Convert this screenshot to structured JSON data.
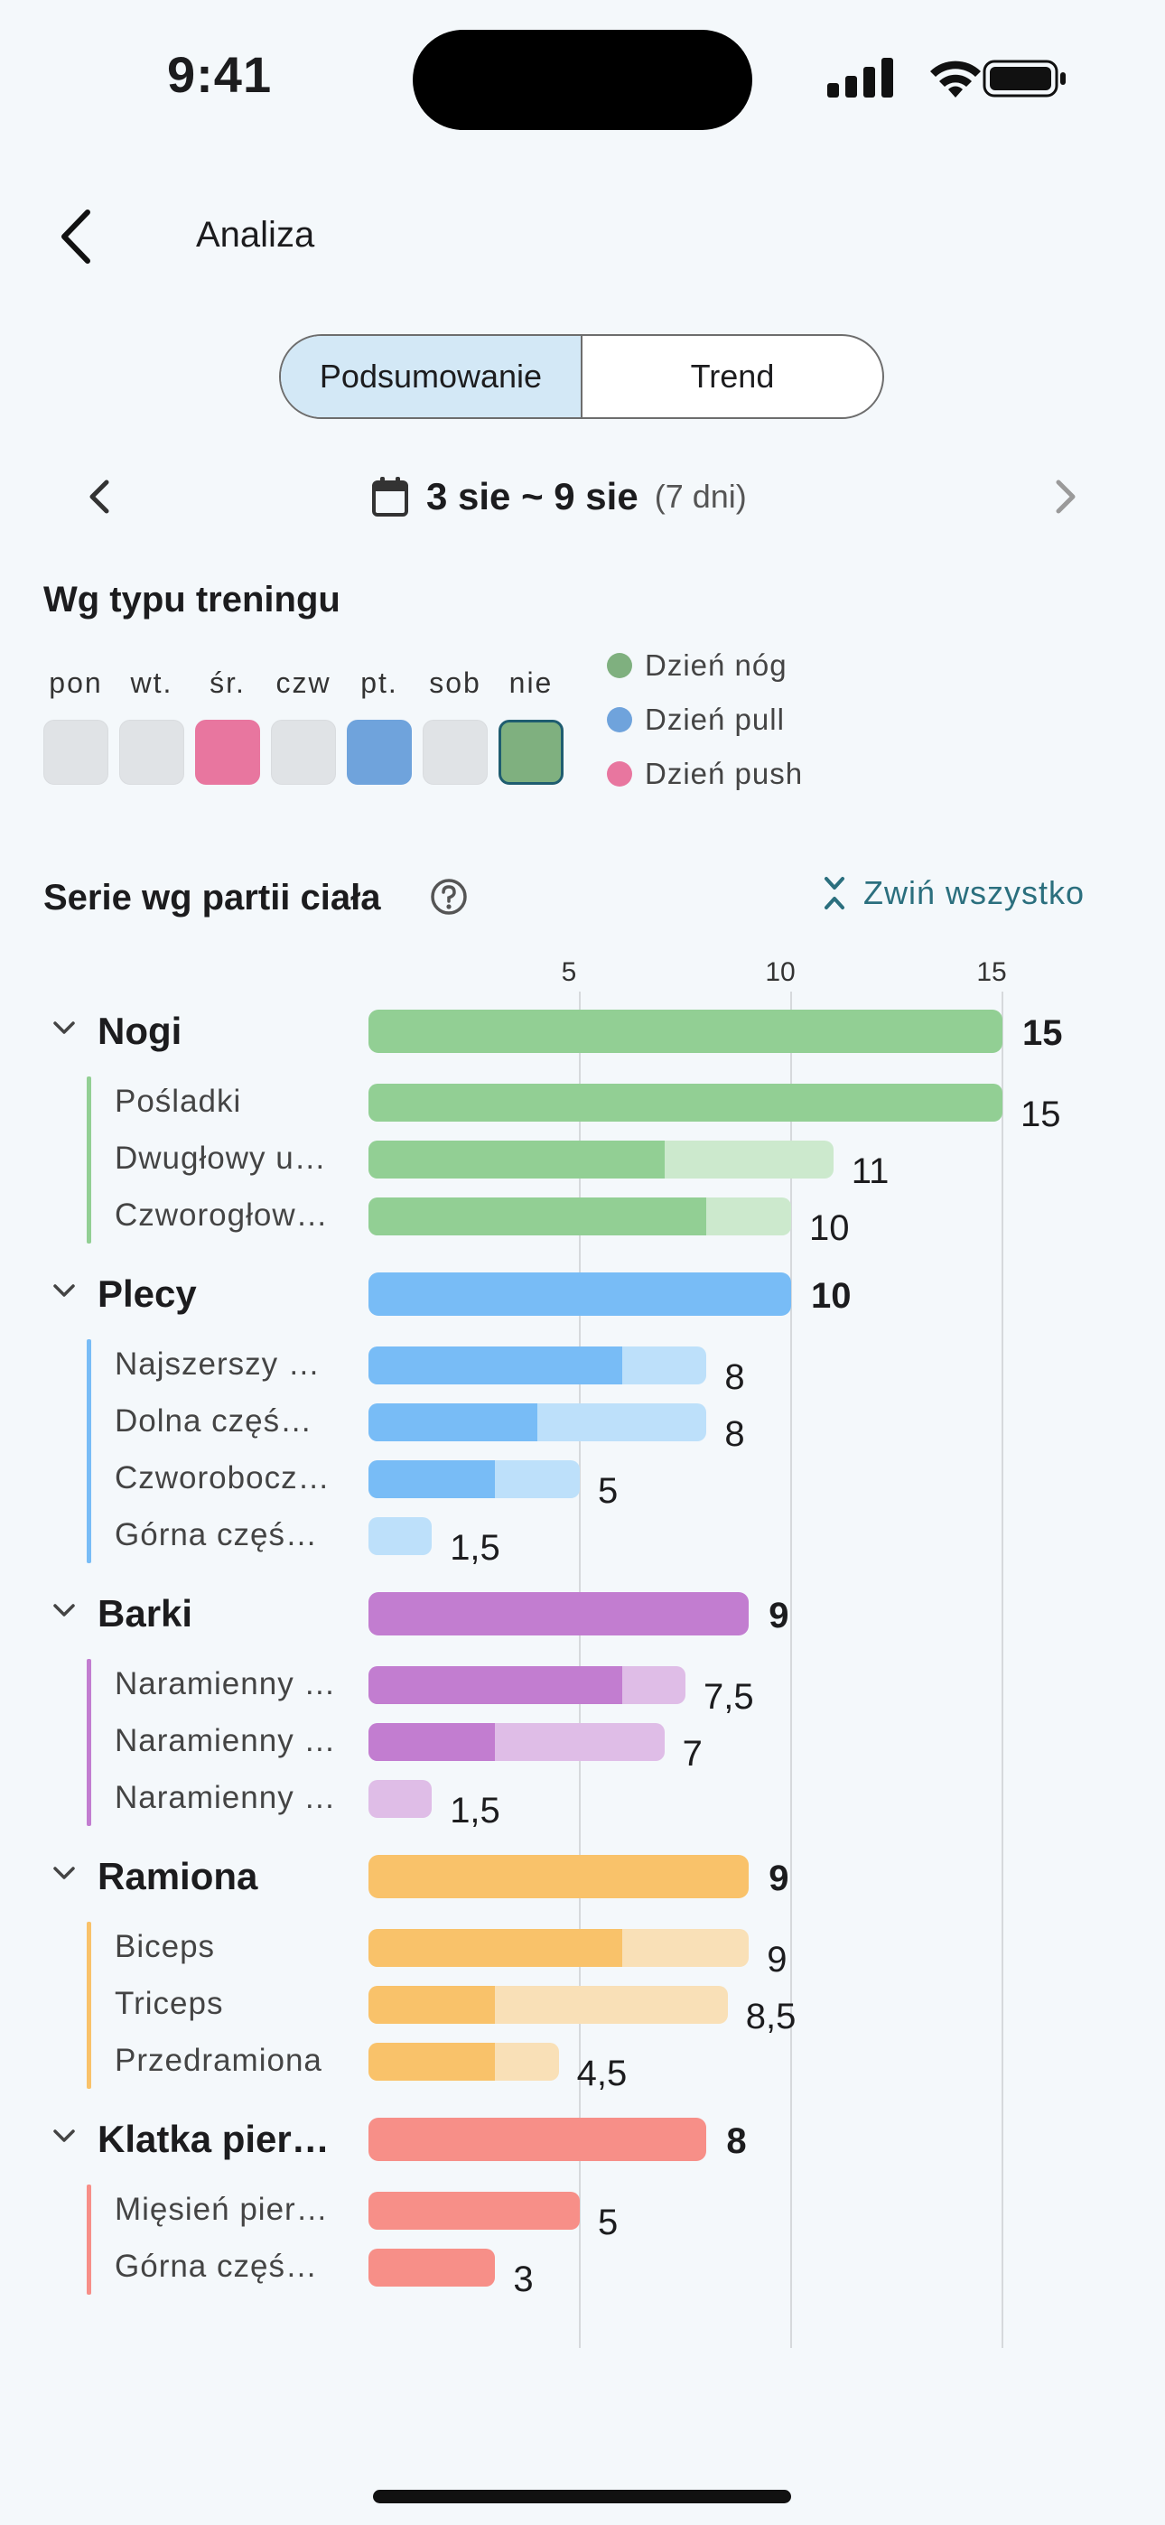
{
  "status_bar": {
    "time": "9:41"
  },
  "header": {
    "title": "Analiza"
  },
  "tabs": [
    {
      "label": "Podsumowanie",
      "active": true
    },
    {
      "label": "Trend",
      "active": false
    }
  ],
  "date_nav": {
    "range": "3 sie ~ 9 sie",
    "days": "(7 dni)"
  },
  "workout_types": {
    "title": "Wg typu treningu",
    "days": [
      {
        "label": "pon",
        "type": null
      },
      {
        "label": "wt.",
        "type": null
      },
      {
        "label": "śr.",
        "type": "push"
      },
      {
        "label": "czw",
        "type": null
      },
      {
        "label": "pt.",
        "type": "pull"
      },
      {
        "label": "sob",
        "type": null
      },
      {
        "label": "nie",
        "type": "legs"
      }
    ],
    "legend": [
      {
        "key": "legs",
        "label": "Dzień nóg",
        "color": "#7fb07f"
      },
      {
        "key": "pull",
        "label": "Dzień pull",
        "color": "#6fa3dc"
      },
      {
        "key": "push",
        "label": "Dzień push",
        "color": "#e8769f"
      }
    ]
  },
  "body_parts": {
    "title": "Serie wg partii ciała",
    "collapse_label": "Zwiń wszystko"
  },
  "chart_data": {
    "type": "bar",
    "orientation": "horizontal",
    "x_ticks": [
      5,
      10,
      15
    ],
    "xlim": [
      0,
      15
    ],
    "groups": [
      {
        "name": "Nogi",
        "value": 15,
        "color": "#92cf94",
        "light": "#cce9cd",
        "items": [
          {
            "name": "Pośladki",
            "value": 15,
            "value_label": "15",
            "primary": 15
          },
          {
            "name": "Dwugłowy u…",
            "value": 11,
            "value_label": "11",
            "primary": 7
          },
          {
            "name": "Czworogłow…",
            "value": 10,
            "value_label": "10",
            "primary": 8
          }
        ]
      },
      {
        "name": "Plecy",
        "value": 10,
        "color": "#78bcf6",
        "light": "#bde0fa",
        "items": [
          {
            "name": "Najszerszy …",
            "value": 8,
            "value_label": "8",
            "primary": 6
          },
          {
            "name": "Dolna częś…",
            "value": 8,
            "value_label": "8",
            "primary": 4
          },
          {
            "name": "Czworobocz…",
            "value": 5,
            "value_label": "5",
            "primary": 3
          },
          {
            "name": "Górna częś…",
            "value": 1.5,
            "value_label": "1,5",
            "primary": 0
          }
        ]
      },
      {
        "name": "Barki",
        "value": 9,
        "color": "#c27dd0",
        "light": "#dfbde7",
        "items": [
          {
            "name": "Naramienny …",
            "value": 7.5,
            "value_label": "7,5",
            "primary": 6
          },
          {
            "name": "Naramienny …",
            "value": 7,
            "value_label": "7",
            "primary": 3
          },
          {
            "name": "Naramienny …",
            "value": 1.5,
            "value_label": "1,5",
            "primary": 0
          }
        ]
      },
      {
        "name": "Ramiona",
        "value": 9,
        "color": "#f9c26a",
        "light": "#f9e0b7",
        "items": [
          {
            "name": "Biceps",
            "value": 9,
            "value_label": "9",
            "primary": 6
          },
          {
            "name": "Triceps",
            "value": 8.5,
            "value_label": "8,5",
            "primary": 3
          },
          {
            "name": "Przedramiona",
            "value": 4.5,
            "value_label": "4,5",
            "primary": 3
          }
        ]
      },
      {
        "name": "Klatka pier…",
        "value": 8,
        "color": "#f78f88",
        "light": "#f9c7c3",
        "items": [
          {
            "name": "Mięsień pier…",
            "value": 5,
            "value_label": "5",
            "primary": 5
          },
          {
            "name": "Górna częś…",
            "value": 3,
            "value_label": "3",
            "primary": 3
          }
        ]
      }
    ]
  }
}
